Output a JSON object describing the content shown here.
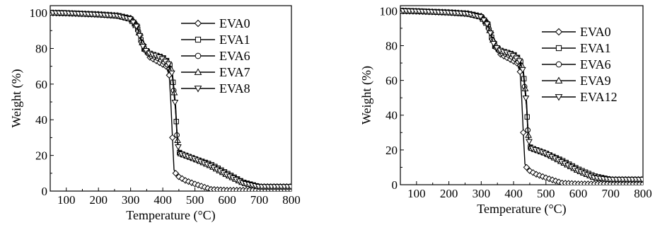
{
  "chart_data": [
    {
      "type": "line",
      "xlabel": "Temperature (°C)",
      "ylabel": "Weight (%)",
      "xlim": [
        50,
        800
      ],
      "ylim": [
        0,
        104
      ],
      "xticks": [
        100,
        200,
        300,
        400,
        500,
        600,
        700,
        800
      ],
      "yticks": [
        0,
        20,
        40,
        60,
        80,
        100
      ],
      "legend_position": "right",
      "series": [
        {
          "name": "EVA0",
          "marker": "diamond",
          "x": [
            50,
            100,
            200,
            260,
            300,
            320,
            340,
            360,
            380,
            400,
            410,
            420,
            425,
            430,
            435,
            440,
            450,
            470,
            500,
            550,
            600,
            700,
            800
          ],
          "y": [
            100,
            99.8,
            99.2,
            98.5,
            97,
            93,
            82,
            75,
            73,
            71,
            70,
            65,
            50,
            30,
            12,
            10,
            8,
            6,
            4,
            1,
            0.5,
            0.5,
            0.5
          ]
        },
        {
          "name": "EVA1",
          "marker": "square",
          "x": [
            50,
            100,
            200,
            260,
            300,
            320,
            340,
            360,
            380,
            400,
            420,
            430,
            440,
            445,
            450,
            455,
            470,
            500,
            550,
            600,
            650,
            700,
            800
          ],
          "y": [
            100,
            99.8,
            99,
            98.3,
            96.5,
            92,
            80,
            77,
            76,
            75,
            72,
            65,
            45,
            30,
            22,
            21,
            20,
            18,
            15,
            10,
            5,
            2.5,
            2.5
          ]
        },
        {
          "name": "EVA6",
          "marker": "circle",
          "x": [
            50,
            100,
            200,
            260,
            300,
            320,
            340,
            360,
            380,
            400,
            420,
            430,
            440,
            445,
            450,
            455,
            470,
            500,
            550,
            600,
            650,
            700,
            800
          ],
          "y": [
            100,
            99.8,
            99,
            98.2,
            96.5,
            92,
            80,
            76,
            75,
            73,
            70,
            64,
            45,
            28,
            22,
            21,
            20,
            18,
            14,
            9,
            4.5,
            2.5,
            2.5
          ]
        },
        {
          "name": "EVA7",
          "marker": "triangle-up",
          "x": [
            50,
            100,
            200,
            260,
            300,
            320,
            340,
            360,
            380,
            400,
            420,
            430,
            440,
            445,
            450,
            455,
            470,
            500,
            550,
            600,
            650,
            700,
            800
          ],
          "y": [
            100,
            99.8,
            99,
            98.3,
            96.5,
            92,
            81,
            77,
            76,
            75,
            72,
            66,
            48,
            30,
            22,
            21,
            20,
            18,
            14,
            9,
            4.5,
            2.5,
            2.5
          ]
        },
        {
          "name": "EVA8",
          "marker": "triangle-down",
          "x": [
            50,
            100,
            200,
            260,
            300,
            320,
            340,
            360,
            380,
            400,
            420,
            430,
            440,
            445,
            450,
            455,
            470,
            500,
            550,
            600,
            650,
            700,
            800
          ],
          "y": [
            100,
            99.8,
            99,
            98.3,
            96.5,
            92,
            80,
            77,
            76,
            74,
            71,
            65,
            46,
            29,
            22,
            21,
            20,
            18,
            14,
            9,
            4.5,
            2.5,
            2.5
          ]
        }
      ]
    },
    {
      "type": "line",
      "xlabel": "Temperature (°C)",
      "ylabel": "Weight (%)",
      "xlim": [
        50,
        800
      ],
      "ylim": [
        0,
        103
      ],
      "xticks": [
        100,
        200,
        300,
        400,
        500,
        600,
        700,
        800
      ],
      "yticks": [
        0,
        20,
        40,
        60,
        80,
        100
      ],
      "legend_position": "right",
      "series": [
        {
          "name": "EVA0",
          "marker": "diamond",
          "x": [
            50,
            100,
            200,
            260,
            300,
            320,
            340,
            360,
            380,
            400,
            410,
            420,
            425,
            430,
            435,
            440,
            450,
            470,
            500,
            550,
            600,
            700,
            800
          ],
          "y": [
            100,
            99.8,
            99.2,
            98.5,
            97,
            93,
            82,
            75,
            73,
            71,
            70,
            65,
            50,
            30,
            12,
            10,
            8,
            6,
            4,
            1,
            0.5,
            0.5,
            0.5
          ]
        },
        {
          "name": "EVA1",
          "marker": "square",
          "x": [
            50,
            100,
            200,
            260,
            300,
            320,
            340,
            360,
            380,
            400,
            420,
            430,
            440,
            445,
            450,
            455,
            470,
            500,
            550,
            600,
            650,
            700,
            800
          ],
          "y": [
            100,
            99.8,
            99,
            98.3,
            96.5,
            92,
            80,
            77,
            76,
            75,
            72,
            65,
            45,
            30,
            22,
            21,
            20,
            18,
            14,
            9,
            5,
            3,
            3
          ]
        },
        {
          "name": "EVA6",
          "marker": "circle",
          "x": [
            50,
            100,
            200,
            260,
            300,
            320,
            340,
            360,
            380,
            400,
            420,
            430,
            440,
            445,
            450,
            455,
            470,
            500,
            550,
            600,
            650,
            700,
            800
          ],
          "y": [
            100,
            99.8,
            99,
            98.2,
            96.5,
            92,
            80,
            76,
            75,
            73,
            70,
            64,
            45,
            28,
            22,
            21,
            20,
            18,
            13,
            8,
            4,
            3,
            3
          ]
        },
        {
          "name": "EVA9",
          "marker": "triangle-up",
          "x": [
            50,
            100,
            200,
            260,
            300,
            320,
            340,
            360,
            380,
            400,
            420,
            430,
            440,
            445,
            450,
            455,
            470,
            500,
            550,
            600,
            650,
            700,
            800
          ],
          "y": [
            100,
            99.8,
            99,
            98.3,
            96.5,
            92,
            81,
            77,
            76,
            75,
            72,
            66,
            48,
            30,
            22,
            21,
            20,
            18,
            13,
            8,
            4,
            3,
            3
          ]
        },
        {
          "name": "EVA12",
          "marker": "triangle-down",
          "x": [
            50,
            100,
            200,
            260,
            300,
            320,
            340,
            360,
            380,
            400,
            420,
            430,
            440,
            445,
            450,
            455,
            470,
            500,
            550,
            600,
            650,
            700,
            800
          ],
          "y": [
            100,
            99.8,
            99,
            98.3,
            96.5,
            92,
            80,
            77,
            76,
            74,
            71,
            65,
            46,
            29,
            22,
            21,
            20,
            18,
            13,
            8,
            4,
            3,
            3
          ]
        }
      ]
    }
  ]
}
